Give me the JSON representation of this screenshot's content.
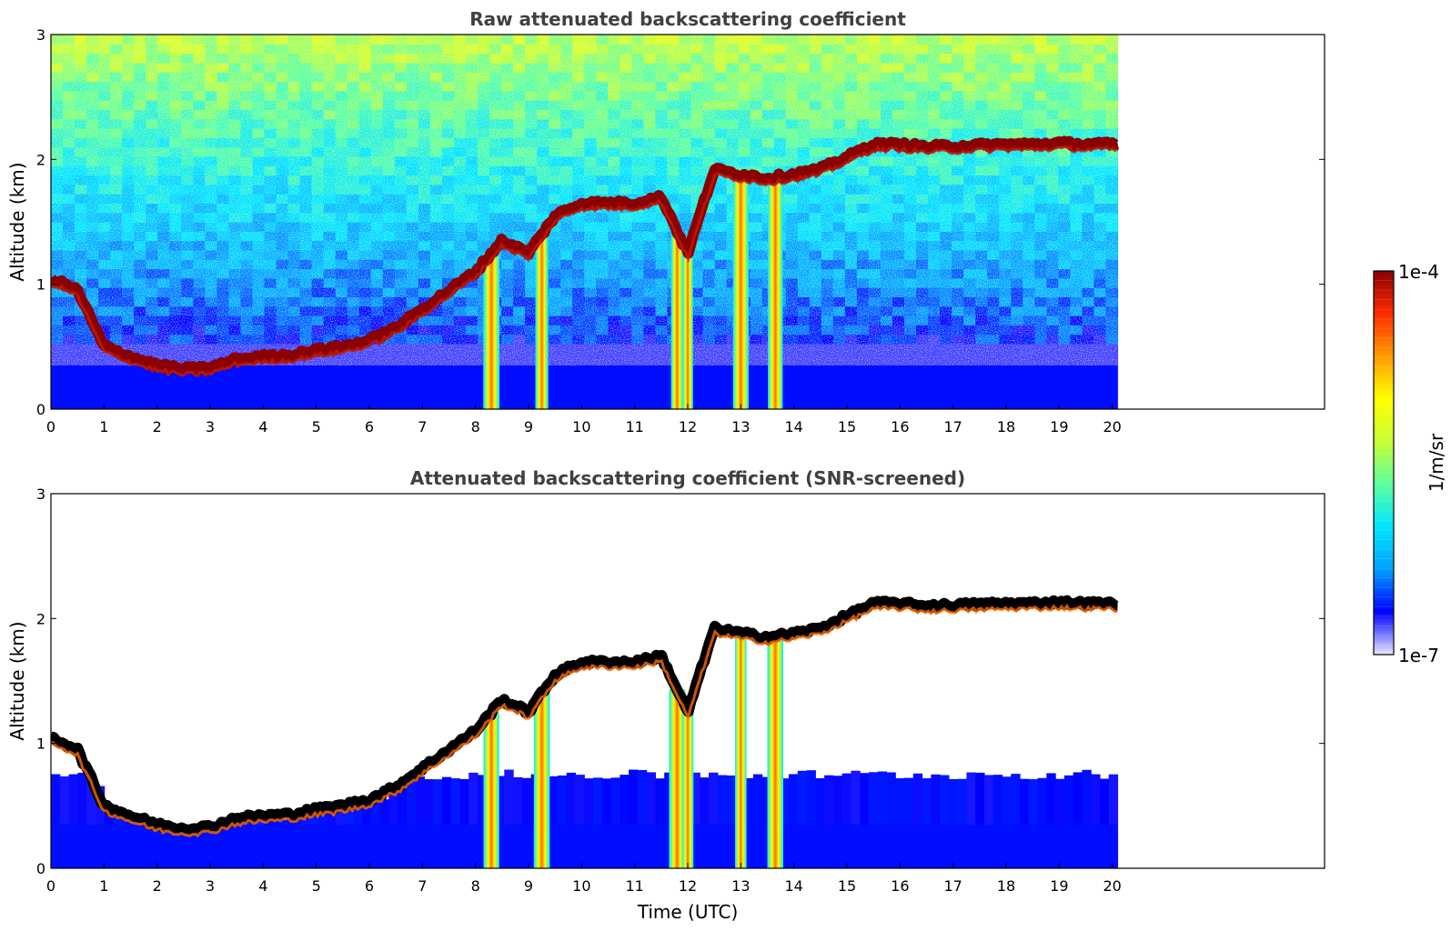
{
  "chart_data": [
    {
      "type": "heatmap",
      "title": "Raw attenuated backscattering coefficient",
      "xlabel": "",
      "ylabel": "Altitude (km)",
      "xlim": [
        0,
        24
      ],
      "ylim": [
        0,
        3
      ],
      "x_ticks": [
        0,
        1,
        2,
        3,
        4,
        5,
        6,
        7,
        8,
        9,
        10,
        11,
        12,
        13,
        14,
        15,
        16,
        17,
        18,
        19,
        20
      ],
      "y_ticks": [
        0,
        1,
        2,
        3
      ],
      "data_end_time_utc": 20.1,
      "color_scale": "log",
      "colormap": [
        "#0000ff",
        "#00ffff",
        "#ffff00",
        "#ff0000",
        "#8b0000"
      ],
      "near_surface_high_backscatter_below_km": 0.35,
      "cloud_layer_base_km": {
        "time_utc": [
          0,
          0.5,
          1.0,
          1.5,
          2.0,
          2.5,
          3.0,
          3.5,
          4.0,
          4.5,
          5.0,
          5.5,
          6.0,
          6.5,
          7.0,
          7.5,
          8.0,
          8.5,
          9.0,
          9.5,
          10.0,
          10.5,
          11.0,
          11.5,
          12.0,
          12.5,
          13.0,
          13.5,
          14.0,
          14.5,
          15.0,
          15.5,
          16.0,
          16.5,
          18.0,
          18.5,
          19.0,
          19.5,
          20.0
        ],
        "altitude_km": [
          1.05,
          0.95,
          0.5,
          0.42,
          0.35,
          0.32,
          0.33,
          0.4,
          0.42,
          0.43,
          0.47,
          0.5,
          0.55,
          0.65,
          0.8,
          0.95,
          1.1,
          1.35,
          1.25,
          1.55,
          1.65,
          1.65,
          1.65,
          1.7,
          1.25,
          1.92,
          1.88,
          1.85,
          1.88,
          1.92,
          2.02,
          2.12,
          2.12,
          2.1,
          2.12,
          2.12,
          2.13,
          2.12,
          2.12
        ]
      },
      "precipitation_fall_streaks_time_utc": [
        8.3,
        9.25,
        11.8,
        12.0,
        13.0,
        13.65
      ]
    },
    {
      "type": "heatmap",
      "title": "Attenuated backscattering coefficient (SNR-screened)",
      "xlabel": "Time (UTC)",
      "ylabel": "Altitude (km)",
      "xlim": [
        0,
        24
      ],
      "ylim": [
        0,
        3
      ],
      "x_ticks": [
        0,
        1,
        2,
        3,
        4,
        5,
        6,
        7,
        8,
        9,
        10,
        11,
        12,
        13,
        14,
        15,
        16,
        17,
        18,
        19,
        20
      ],
      "y_ticks": [
        0,
        1,
        2,
        3
      ],
      "data_end_time_utc": 20.1,
      "color_scale": "log",
      "screening": "SNR"
    }
  ],
  "colorbar": {
    "label": "1/m/sr",
    "max_label": "1e-4",
    "min_label": "1e-7",
    "stops": [
      "#e8e8ff",
      "#0000ff",
      "#00a0ff",
      "#00e5ff",
      "#5aff9e",
      "#c8ff32",
      "#ffff00",
      "#ff9a00",
      "#ff2a00",
      "#8b0000"
    ]
  }
}
